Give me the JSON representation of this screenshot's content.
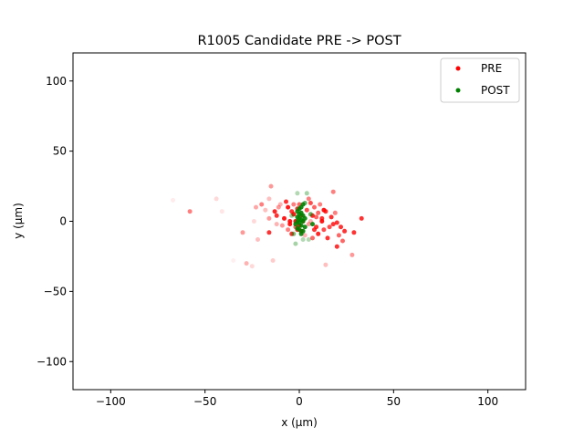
{
  "chart_data": {
    "type": "scatter",
    "title": "R1005 Candidate PRE -> POST",
    "xlabel": "x (µm)",
    "ylabel": "y (µm)",
    "xlim": [
      -120,
      120
    ],
    "ylim": [
      -120,
      120
    ],
    "xticks": [
      -100,
      -50,
      0,
      50,
      100
    ],
    "yticks": [
      -100,
      -50,
      0,
      50,
      100
    ],
    "grid": false,
    "legend_position": "top-right",
    "series": [
      {
        "name": "PRE",
        "color": "#ff0000",
        "points": [
          [
            -67,
            15,
            0.08
          ],
          [
            -58,
            7,
            0.5
          ],
          [
            -44,
            16,
            0.15
          ],
          [
            -41,
            7,
            0.1
          ],
          [
            -30,
            -8,
            0.4
          ],
          [
            -28,
            -30,
            0.3
          ],
          [
            -25,
            -32,
            0.15
          ],
          [
            -24,
            0,
            0.15
          ],
          [
            -23,
            10,
            0.35
          ],
          [
            -22,
            -13,
            0.25
          ],
          [
            -20,
            12,
            0.5
          ],
          [
            -18,
            8,
            0.25
          ],
          [
            -16,
            -8,
            0.8
          ],
          [
            -16,
            2,
            0.4
          ],
          [
            -16,
            16,
            0.25
          ],
          [
            -15,
            25,
            0.4
          ],
          [
            -14,
            -28,
            0.2
          ],
          [
            -13,
            7,
            0.85
          ],
          [
            -12,
            4,
            0.8
          ],
          [
            -12,
            -2,
            0.3
          ],
          [
            -11,
            10,
            0.4
          ],
          [
            -10,
            12,
            0.3
          ],
          [
            -9,
            -3,
            0.4
          ],
          [
            -8,
            2,
            0.9
          ],
          [
            -7,
            14,
            0.8
          ],
          [
            -6,
            10,
            0.9
          ],
          [
            -6,
            -6,
            0.5
          ],
          [
            -5,
            -2,
            0.9
          ],
          [
            -5,
            0,
            0.9
          ],
          [
            -4,
            7,
            0.8
          ],
          [
            -4,
            -9,
            0.8
          ],
          [
            -3,
            5,
            0.9
          ],
          [
            -3,
            12,
            0.5
          ],
          [
            -2,
            0,
            0.9
          ],
          [
            -2,
            -4,
            0.6
          ],
          [
            -1,
            9,
            0.8
          ],
          [
            -1,
            -6,
            0.85
          ],
          [
            0,
            -3,
            0.9
          ],
          [
            0,
            12,
            0.6
          ],
          [
            1,
            -7,
            0.9
          ],
          [
            1,
            4,
            0.8
          ],
          [
            2,
            0,
            0.8
          ],
          [
            3,
            -10,
            0.3
          ],
          [
            4,
            8,
            0.7
          ],
          [
            5,
            16,
            0.5
          ],
          [
            5,
            -2,
            0.4
          ],
          [
            6,
            13,
            0.7
          ],
          [
            6,
            0,
            0.3
          ],
          [
            7,
            -12,
            0.6
          ],
          [
            7,
            4,
            0.85
          ],
          [
            8,
            10,
            0.6
          ],
          [
            8,
            -6,
            0.8
          ],
          [
            9,
            -4,
            0.8
          ],
          [
            9,
            3,
            0.6
          ],
          [
            10,
            6,
            0.6
          ],
          [
            10,
            -9,
            0.85
          ],
          [
            11,
            12,
            0.5
          ],
          [
            12,
            2,
            0.8
          ],
          [
            12,
            0,
            0.9
          ],
          [
            13,
            8,
            0.9
          ],
          [
            13,
            -6,
            0.7
          ],
          [
            14,
            -31,
            0.25
          ],
          [
            14,
            7,
            0.8
          ],
          [
            15,
            -12,
            0.8
          ],
          [
            16,
            -4,
            0.7
          ],
          [
            17,
            3,
            0.8
          ],
          [
            18,
            21,
            0.5
          ],
          [
            18,
            -2,
            0.8
          ],
          [
            19,
            6,
            0.5
          ],
          [
            20,
            -1,
            0.8
          ],
          [
            20,
            -18,
            0.8
          ],
          [
            21,
            -10,
            0.6
          ],
          [
            22,
            -4,
            0.8
          ],
          [
            23,
            -14,
            0.6
          ],
          [
            24,
            -7,
            0.8
          ],
          [
            28,
            -24,
            0.4
          ],
          [
            29,
            -8,
            0.8
          ],
          [
            33,
            2,
            0.8
          ],
          [
            -35,
            -28,
            0.06
          ]
        ]
      },
      {
        "name": "POST",
        "color": "#008000",
        "points": [
          [
            -1,
            20,
            0.3
          ],
          [
            4,
            20,
            0.35
          ],
          [
            3,
            13,
            0.6
          ],
          [
            2,
            12,
            0.9
          ],
          [
            1,
            10,
            0.9
          ],
          [
            0,
            9,
            0.9
          ],
          [
            -1,
            7,
            0.9
          ],
          [
            1,
            6,
            0.9
          ],
          [
            0,
            5,
            0.9
          ],
          [
            2,
            4,
            0.9
          ],
          [
            -1,
            3,
            0.9
          ],
          [
            0,
            2,
            0.9
          ],
          [
            1,
            1,
            0.9
          ],
          [
            -1,
            0,
            0.9
          ],
          [
            2,
            0,
            0.9
          ],
          [
            0,
            -1,
            0.9
          ],
          [
            -2,
            -2,
            0.9
          ],
          [
            1,
            -3,
            0.9
          ],
          [
            3,
            -4,
            0.9
          ],
          [
            -1,
            -5,
            0.9
          ],
          [
            0,
            -6,
            0.9
          ],
          [
            2,
            -7,
            0.9
          ],
          [
            1,
            -9,
            0.9
          ],
          [
            -3,
            -9,
            0.5
          ],
          [
            -2,
            -16,
            0.35
          ],
          [
            2,
            -13,
            0.3
          ],
          [
            5,
            -13,
            0.3
          ],
          [
            7,
            -2,
            0.9
          ],
          [
            6,
            5,
            0.6
          ],
          [
            -4,
            4,
            0.4
          ],
          [
            3,
            2,
            0.9
          ]
        ]
      }
    ]
  }
}
